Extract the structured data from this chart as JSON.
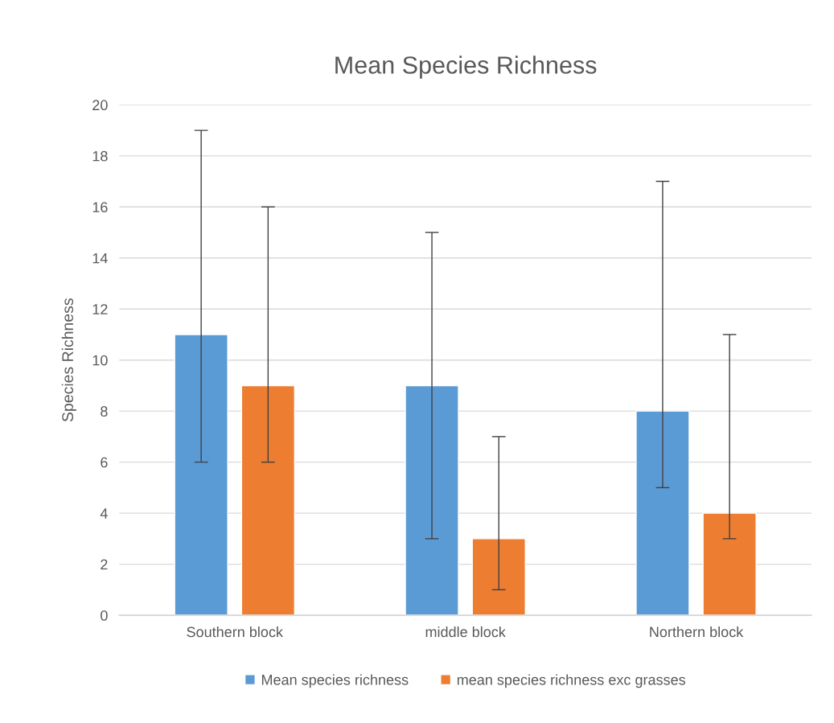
{
  "chart_data": {
    "type": "bar",
    "title": "Mean Species Richness",
    "ylabel": "Species Richness",
    "categories": [
      "Southern block",
      "middle block",
      "Northern block"
    ],
    "series": [
      {
        "name": "Mean species richness",
        "color": "#5b9bd5",
        "values": [
          11,
          9,
          8
        ],
        "errors": [
          [
            6,
            19
          ],
          [
            3,
            15
          ],
          [
            5,
            17
          ]
        ]
      },
      {
        "name": "mean species richness exc grasses",
        "color": "#ed7d31",
        "values": [
          9,
          3,
          4
        ],
        "errors": [
          [
            6,
            16
          ],
          [
            1,
            7
          ],
          [
            3,
            11
          ]
        ]
      }
    ],
    "ylim": [
      0,
      20
    ],
    "yticks": [
      0,
      2,
      4,
      6,
      8,
      10,
      12,
      14,
      16,
      18,
      20
    ],
    "grid": "y",
    "legend": "bottom"
  }
}
